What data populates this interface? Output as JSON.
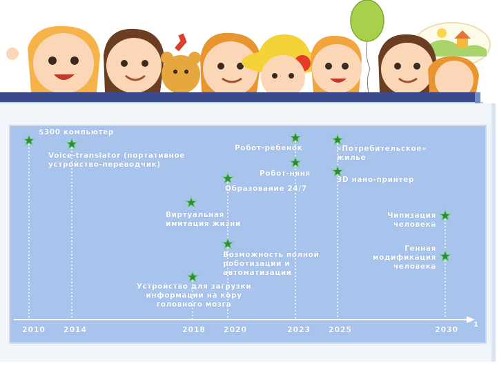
{
  "events": [
    {
      "id": "e1",
      "text": "$300 компьютер"
    },
    {
      "id": "e2",
      "text": "Voice-translator (портативное\nустройство-переводчик)"
    },
    {
      "id": "e3",
      "text": "Робот-ребенок"
    },
    {
      "id": "e4",
      "text": "«Потребительское»\nжилье"
    },
    {
      "id": "e5",
      "text": "Робот-няня"
    },
    {
      "id": "e6",
      "text": "3D нано-принтер"
    },
    {
      "id": "e7",
      "text": "Образование 24/7"
    },
    {
      "id": "e8",
      "text": "Виртуальная\nимитация жизни"
    },
    {
      "id": "e9",
      "text": "Чипизация\nчеловека"
    },
    {
      "id": "e10",
      "text": "Возможность полной\nроботизации и\nавтоматизации"
    },
    {
      "id": "e11",
      "text": "Генная\nмодификация\nчеловека"
    },
    {
      "id": "e12",
      "text": "Устройство для загрузки\nинформации на кору\nголовного мозга"
    }
  ],
  "years": [
    "2010",
    "2014",
    "2018",
    "2020",
    "2023",
    "2025",
    "2030"
  ],
  "axis_marker": "1",
  "colors": {
    "panel": "#a9c4ec",
    "star_fill": "#2e8b3e",
    "star_stroke": "#7fd08a",
    "header_bar": "#3a4a8c"
  }
}
